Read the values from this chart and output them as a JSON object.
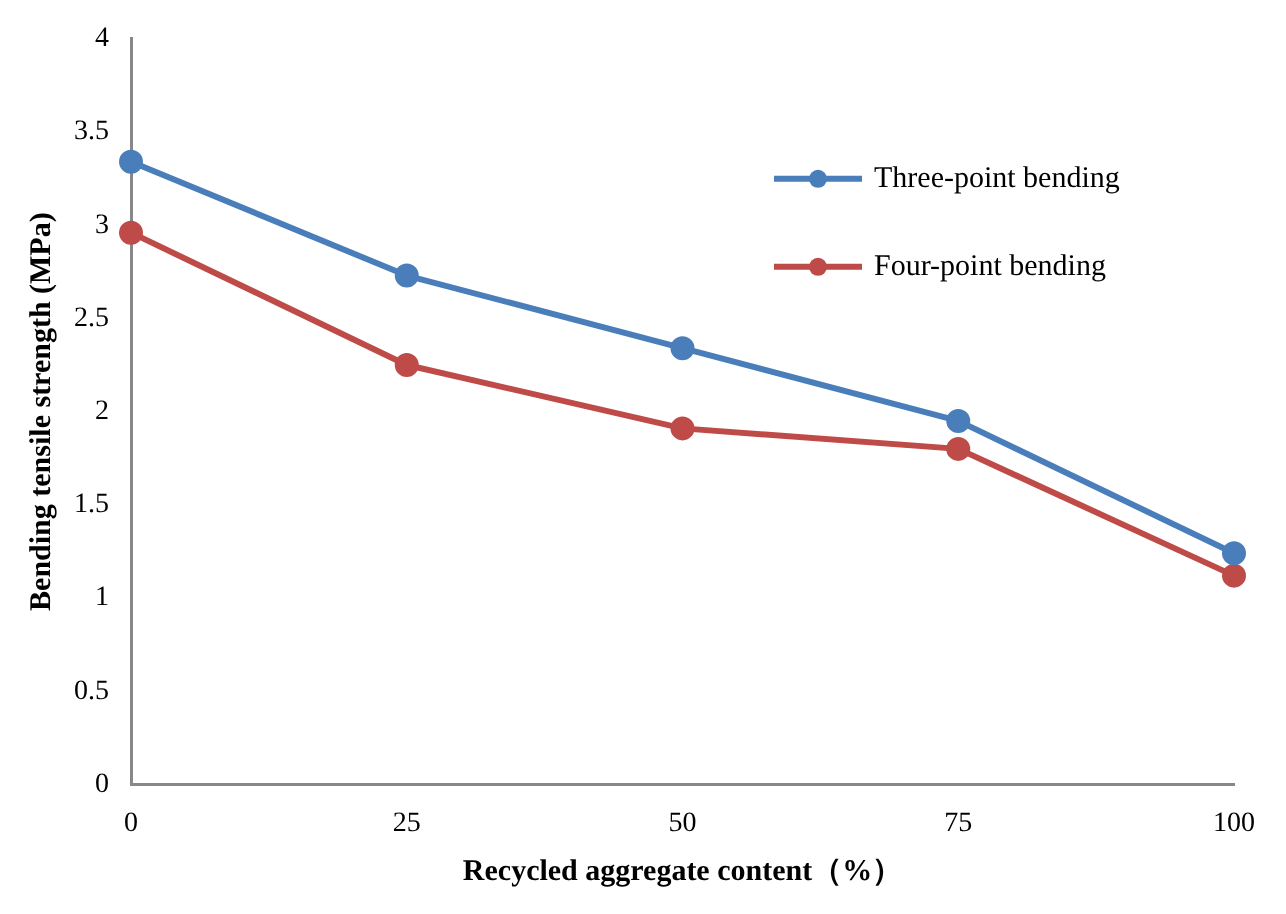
{
  "chart_data": {
    "type": "line",
    "xlabel": "Recycled aggregate content（%）",
    "ylabel": "Bending tensile strength (MPa)",
    "categories": [
      "0",
      "25",
      "50",
      "75",
      "100"
    ],
    "series": [
      {
        "name": "Three-point bending",
        "color": "#4a7ebb",
        "values": [
          3.34,
          2.73,
          2.34,
          1.95,
          1.24
        ]
      },
      {
        "name": "Four-point bending",
        "color": "#be4b48",
        "values": [
          2.96,
          2.25,
          1.91,
          1.8,
          1.12
        ]
      }
    ],
    "ylim": [
      0,
      4
    ],
    "yticks": [
      0,
      0.5,
      1,
      1.5,
      2,
      2.5,
      3,
      3.5,
      4
    ],
    "grid": false,
    "legend": "top right",
    "marker": "circle",
    "line_style": "solid"
  }
}
